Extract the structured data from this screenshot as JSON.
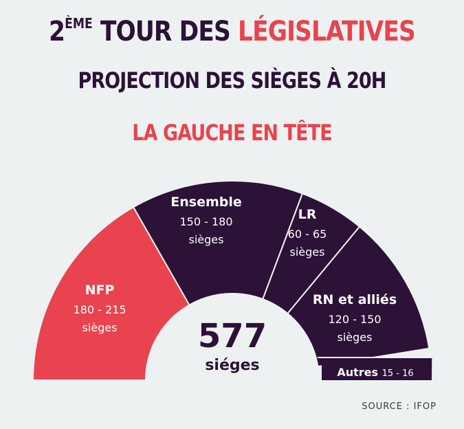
{
  "header": {
    "title_prefix": "2",
    "title_sup": "ÈME",
    "title_main": " TOUR DES ",
    "title_accent": "LÉGISLATIVES",
    "subtitle": "PROJECTION DES SIÈGES À 20H",
    "headline": "LA GAUCHE EN TÊTE"
  },
  "colors": {
    "accent": "#e8434e",
    "dark": "#2b1236",
    "background": "#eef1f1"
  },
  "chart_data": {
    "type": "pie",
    "subtype": "hemicycle",
    "total": 577,
    "total_value": "577",
    "total_label": "siéges",
    "unit": "sièges",
    "series": [
      {
        "name": "NFP",
        "range": [
          180,
          215
        ],
        "range_label": "180 - 215",
        "unit": "sièges",
        "color": "#e8434e"
      },
      {
        "name": "Ensemble",
        "range": [
          150,
          180
        ],
        "range_label": "150 - 180",
        "unit": "sièges",
        "color": "#2b1236"
      },
      {
        "name": "LR",
        "range": [
          60,
          65
        ],
        "range_label": "60 - 65",
        "unit": "sièges",
        "color": "#2b1236"
      },
      {
        "name": "RN et alliés",
        "range": [
          120,
          150
        ],
        "range_label": "120 - 150",
        "unit": "sièges",
        "color": "#2b1236"
      },
      {
        "name": "Autres",
        "range": [
          15,
          16
        ],
        "range_label": "15 - 16",
        "unit": "",
        "color": "#2b1236"
      }
    ]
  },
  "footer": {
    "source": "SOURCE : IFOP"
  }
}
